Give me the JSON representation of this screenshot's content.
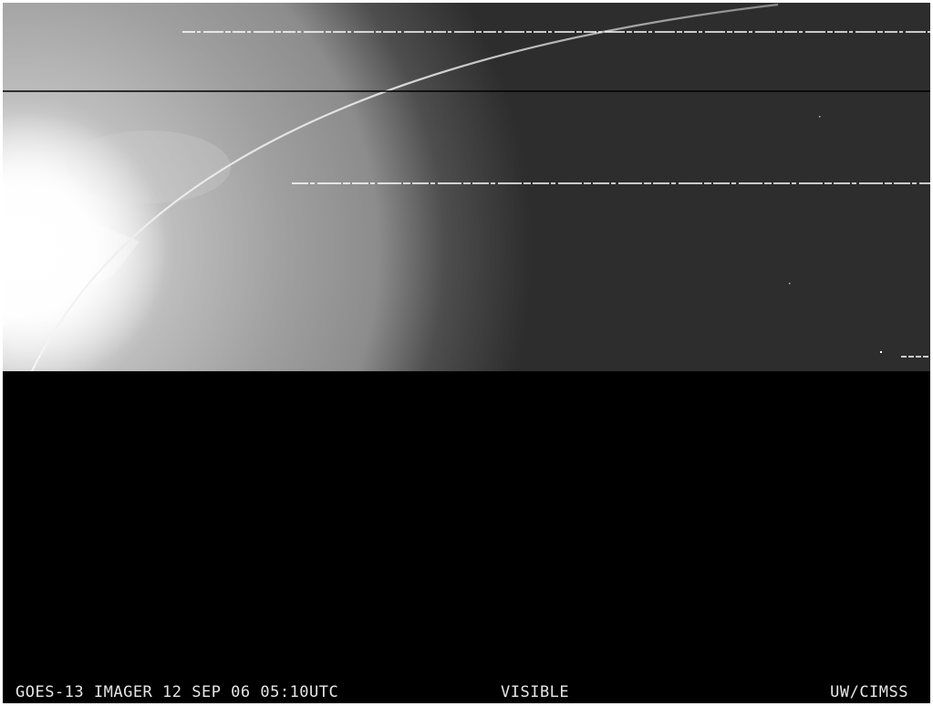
{
  "caption": {
    "left": "GOES-13 IMAGER 12 SEP 06 05:10UTC",
    "center": "VISIBLE",
    "right": "UW/CIMSS"
  }
}
